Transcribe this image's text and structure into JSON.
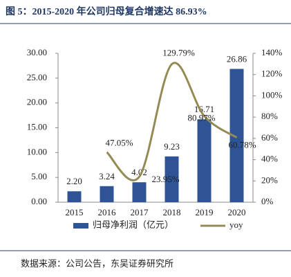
{
  "chart_data": {
    "type": "bar-line",
    "title": "图 5：2015-2020 年公司归母复合增速达 86.93%",
    "source": "数据来源：公司公告，东吴证券研究所",
    "categories": [
      "2015",
      "2016",
      "2017",
      "2018",
      "2019",
      "2020"
    ],
    "series": [
      {
        "name": "归母净利润（亿元）",
        "type": "bar",
        "color": "#2f5496",
        "values": [
          2.2,
          3.24,
          4.02,
          9.23,
          16.71,
          26.86
        ],
        "value_labels": [
          "2.20",
          "3.24",
          "4.02",
          "9.23",
          "16.71",
          "26.86"
        ]
      },
      {
        "name": "yoy",
        "type": "line",
        "axis": "y2",
        "color": "#948a54",
        "values": [
          null,
          47.05,
          23.95,
          129.79,
          80.97,
          60.78
        ],
        "value_labels": [
          null,
          "47.05%",
          "23.95%",
          "129.79%",
          "80.97%",
          "60.78%"
        ]
      }
    ],
    "ylim": [
      0,
      30
    ],
    "yticks": [
      {
        "value": 0,
        "label": "0.00"
      },
      {
        "value": 5,
        "label": "5.00"
      },
      {
        "value": 10,
        "label": "10.00"
      },
      {
        "value": 15,
        "label": "15.00"
      },
      {
        "value": 20,
        "label": "20.00"
      },
      {
        "value": 25,
        "label": "25.00"
      },
      {
        "value": 30,
        "label": "30.00"
      }
    ],
    "y2lim": [
      0,
      140
    ],
    "y2ticks": [
      {
        "value": 0,
        "label": "0%"
      },
      {
        "value": 20,
        "label": "20%"
      },
      {
        "value": 40,
        "label": "40%"
      },
      {
        "value": 60,
        "label": "60%"
      },
      {
        "value": 80,
        "label": "80%"
      },
      {
        "value": 100,
        "label": "100%"
      },
      {
        "value": 120,
        "label": "120%"
      },
      {
        "value": 140,
        "label": "140%"
      }
    ]
  }
}
